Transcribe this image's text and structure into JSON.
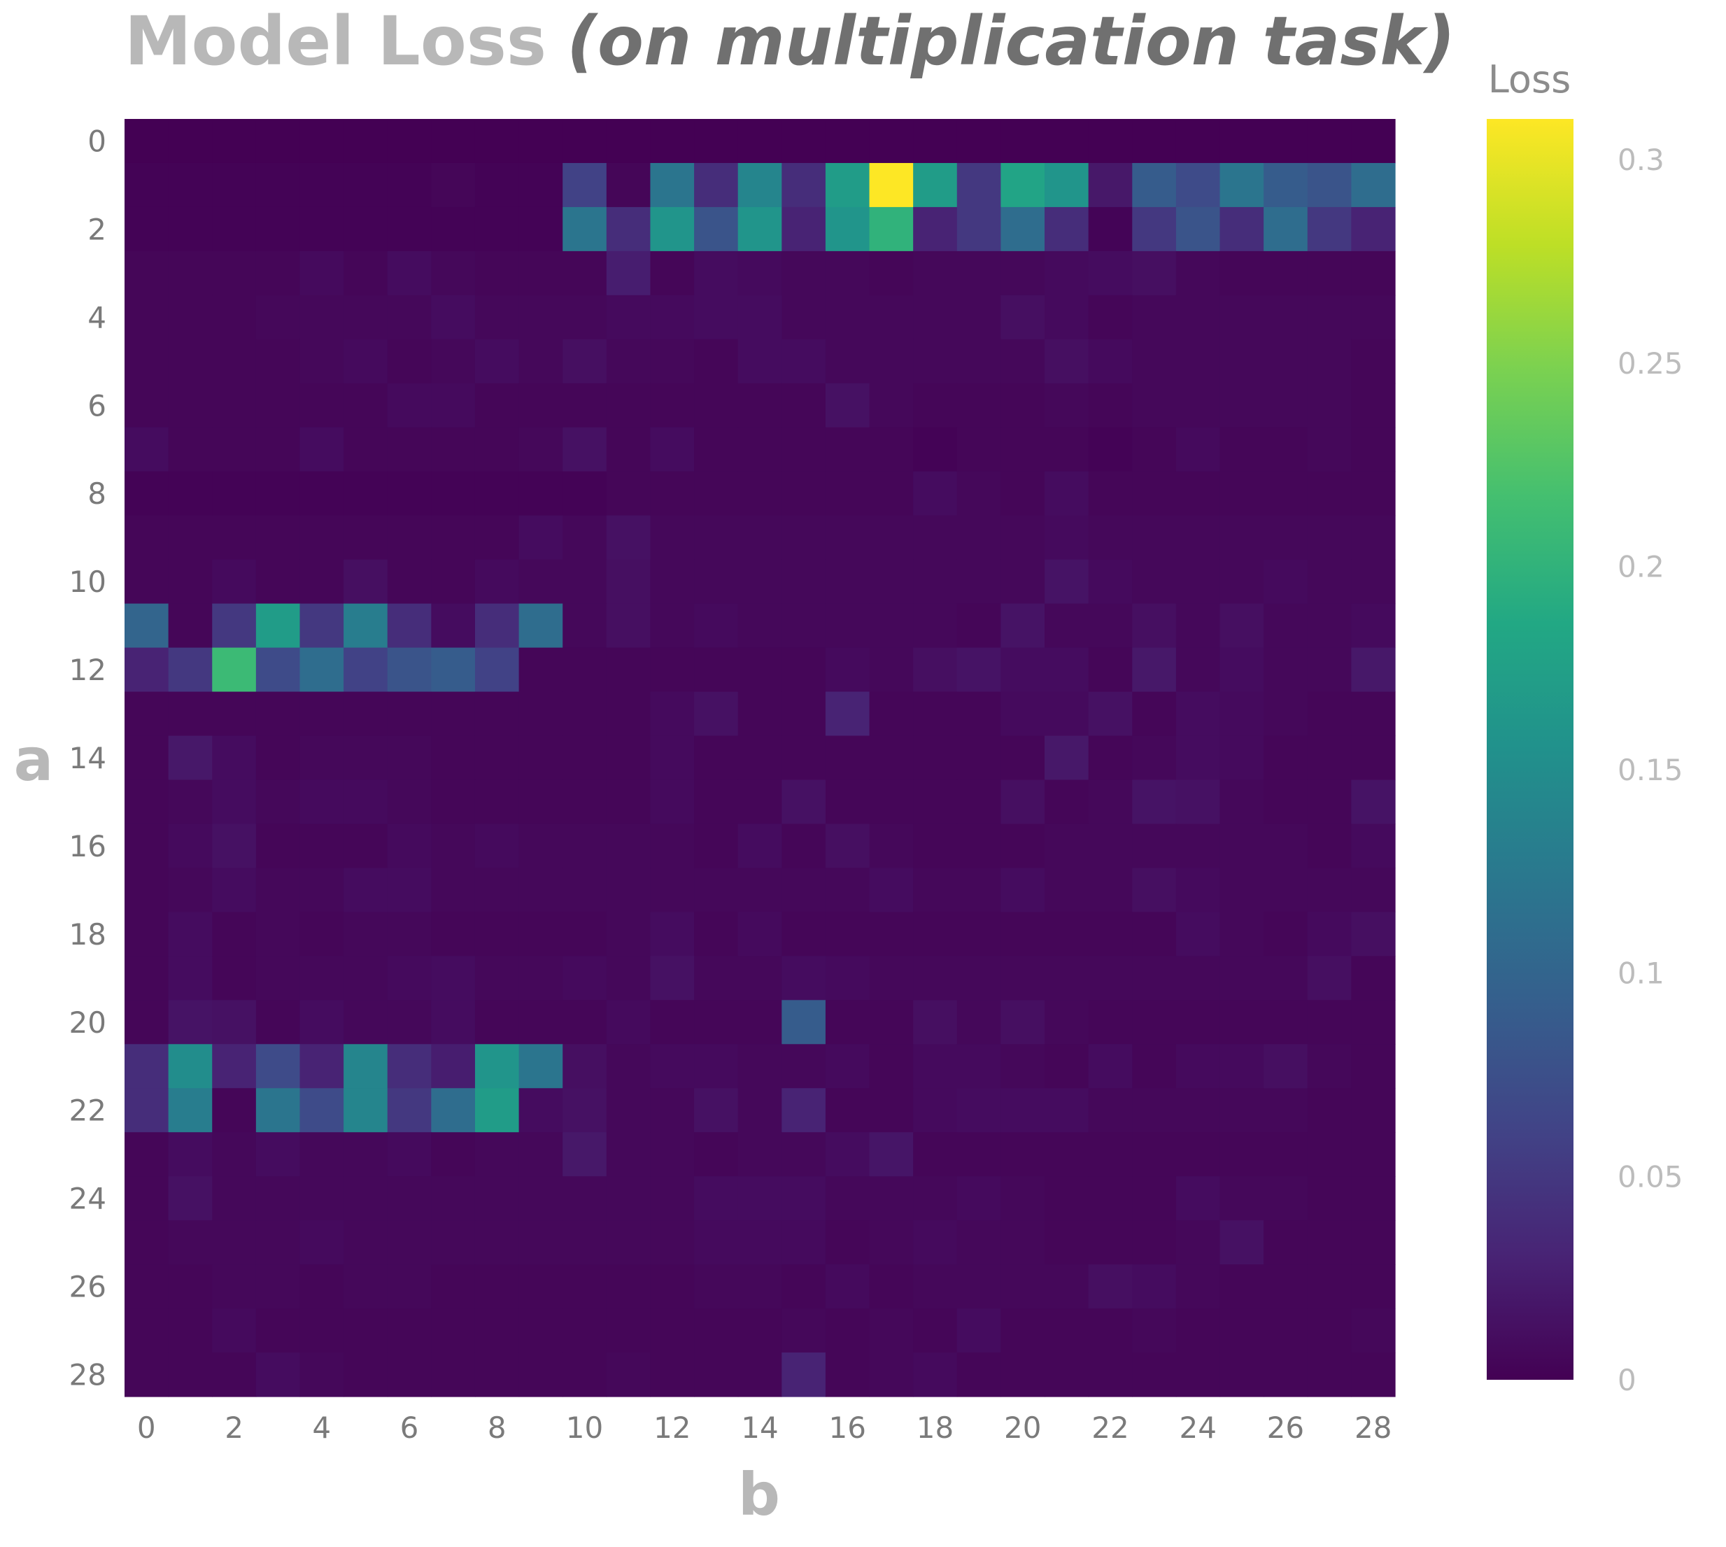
{
  "chart_data": {
    "type": "heatmap",
    "title": "Model Loss",
    "subtitle": "(on multiplication task)",
    "xlabel": "b",
    "ylabel": "a",
    "colorbar_title": "Loss",
    "colorscale": "viridis",
    "zlim": [
      0,
      0.31
    ],
    "colorbar_ticks": [
      "0",
      "0.05",
      "0.1",
      "0.15",
      "0.2",
      "0.25",
      "0.3"
    ],
    "colorbar_tick_values": [
      0,
      0.05,
      0.1,
      0.15,
      0.2,
      0.25,
      0.3
    ],
    "x_tick_labels": [
      "0",
      "2",
      "4",
      "6",
      "8",
      "10",
      "12",
      "14",
      "16",
      "18",
      "20",
      "22",
      "24",
      "26",
      "28"
    ],
    "y_tick_labels": [
      "0",
      "2",
      "4",
      "6",
      "8",
      "10",
      "12",
      "14",
      "16",
      "18",
      "20",
      "22",
      "24",
      "26",
      "28"
    ],
    "x": [
      0,
      1,
      2,
      3,
      4,
      5,
      6,
      7,
      8,
      9,
      10,
      11,
      12,
      13,
      14,
      15,
      16,
      17,
      18,
      19,
      20,
      21,
      22,
      23,
      24,
      25,
      26,
      27,
      28
    ],
    "y": [
      0,
      1,
      2,
      3,
      4,
      5,
      6,
      7,
      8,
      9,
      10,
      11,
      12,
      13,
      14,
      15,
      16,
      17,
      18,
      19,
      20,
      21,
      22,
      23,
      24,
      25,
      26,
      27,
      28
    ],
    "z": [
      [
        0,
        0,
        0,
        0,
        0,
        0,
        0,
        0,
        0,
        0,
        0,
        0,
        0,
        0,
        0,
        0,
        0,
        0,
        0,
        0,
        0,
        0,
        0,
        0,
        0,
        0,
        0,
        0,
        0
      ],
      [
        0.002,
        0.002,
        0.002,
        0.002,
        0.002,
        0.002,
        0.002,
        0.004,
        0.002,
        0.002,
        0.06,
        0.004,
        0.12,
        0.04,
        0.14,
        0.04,
        0.17,
        0.31,
        0.17,
        0.05,
        0.18,
        0.16,
        0.02,
        0.09,
        0.07,
        0.12,
        0.09,
        0.08,
        0.11
      ],
      [
        0.002,
        0.002,
        0.002,
        0.002,
        0.002,
        0.002,
        0.002,
        0.002,
        0.002,
        0.002,
        0.12,
        0.04,
        0.16,
        0.08,
        0.16,
        0.03,
        0.16,
        0.2,
        0.03,
        0.05,
        0.11,
        0.04,
        0.003,
        0.05,
        0.08,
        0.04,
        0.11,
        0.05,
        0.03
      ],
      [
        0.004,
        0.004,
        0.004,
        0.004,
        0.008,
        0.004,
        0.01,
        0.006,
        0.004,
        0.004,
        0.004,
        0.025,
        0.004,
        0.01,
        0.008,
        0.006,
        0.006,
        0.004,
        0.006,
        0.006,
        0.006,
        0.008,
        0.01,
        0.012,
        0.006,
        0.004,
        0.004,
        0.004,
        0.004
      ],
      [
        0.004,
        0.004,
        0.004,
        0.006,
        0.006,
        0.006,
        0.006,
        0.01,
        0.006,
        0.006,
        0.006,
        0.008,
        0.008,
        0.01,
        0.01,
        0.006,
        0.006,
        0.006,
        0.006,
        0.006,
        0.012,
        0.008,
        0.004,
        0.006,
        0.006,
        0.006,
        0.006,
        0.006,
        0.006
      ],
      [
        0.004,
        0.004,
        0.004,
        0.004,
        0.006,
        0.008,
        0.004,
        0.006,
        0.01,
        0.006,
        0.012,
        0.006,
        0.006,
        0.004,
        0.01,
        0.01,
        0.006,
        0.006,
        0.006,
        0.006,
        0.006,
        0.012,
        0.008,
        0.006,
        0.006,
        0.006,
        0.006,
        0.006,
        0.004
      ],
      [
        0.004,
        0.004,
        0.004,
        0.004,
        0.004,
        0.004,
        0.008,
        0.008,
        0.004,
        0.004,
        0.004,
        0.004,
        0.004,
        0.004,
        0.004,
        0.004,
        0.014,
        0.006,
        0.004,
        0.004,
        0.004,
        0.006,
        0.004,
        0.006,
        0.006,
        0.006,
        0.006,
        0.006,
        0.004
      ],
      [
        0.01,
        0.004,
        0.004,
        0.004,
        0.01,
        0.004,
        0.004,
        0.004,
        0.004,
        0.006,
        0.014,
        0.004,
        0.01,
        0.004,
        0.004,
        0.004,
        0.004,
        0.004,
        0.002,
        0.004,
        0.004,
        0.004,
        0.002,
        0.004,
        0.008,
        0.004,
        0.004,
        0.006,
        0.004
      ],
      [
        0.002,
        0.002,
        0.002,
        0.002,
        0.002,
        0.002,
        0.002,
        0.002,
        0.002,
        0.002,
        0.002,
        0.004,
        0.004,
        0.004,
        0.004,
        0.004,
        0.004,
        0.004,
        0.01,
        0.006,
        0.004,
        0.01,
        0.004,
        0.004,
        0.004,
        0.004,
        0.004,
        0.004,
        0.004
      ],
      [
        0.004,
        0.004,
        0.004,
        0.004,
        0.004,
        0.004,
        0.004,
        0.004,
        0.004,
        0.01,
        0.006,
        0.014,
        0.006,
        0.006,
        0.006,
        0.006,
        0.006,
        0.006,
        0.006,
        0.006,
        0.006,
        0.008,
        0.006,
        0.006,
        0.006,
        0.006,
        0.006,
        0.006,
        0.006
      ],
      [
        0.004,
        0.004,
        0.008,
        0.004,
        0.004,
        0.012,
        0.004,
        0.004,
        0.008,
        0.006,
        0.006,
        0.012,
        0.006,
        0.006,
        0.006,
        0.006,
        0.006,
        0.006,
        0.006,
        0.006,
        0.006,
        0.016,
        0.008,
        0.006,
        0.006,
        0.006,
        0.008,
        0.006,
        0.006
      ],
      [
        0.1,
        0.004,
        0.05,
        0.17,
        0.05,
        0.13,
        0.04,
        0.01,
        0.04,
        0.11,
        0.006,
        0.012,
        0.006,
        0.008,
        0.006,
        0.006,
        0.006,
        0.006,
        0.006,
        0.004,
        0.016,
        0.006,
        0.006,
        0.012,
        0.006,
        0.012,
        0.006,
        0.006,
        0.008
      ],
      [
        0.03,
        0.05,
        0.21,
        0.07,
        0.11,
        0.06,
        0.08,
        0.09,
        0.06,
        0.004,
        0.004,
        0.004,
        0.004,
        0.004,
        0.004,
        0.004,
        0.008,
        0.006,
        0.012,
        0.016,
        0.01,
        0.01,
        0.004,
        0.02,
        0.006,
        0.01,
        0.006,
        0.006,
        0.02
      ],
      [
        0.004,
        0.004,
        0.004,
        0.004,
        0.004,
        0.004,
        0.004,
        0.004,
        0.004,
        0.004,
        0.004,
        0.004,
        0.008,
        0.014,
        0.004,
        0.004,
        0.03,
        0.004,
        0.004,
        0.004,
        0.008,
        0.008,
        0.014,
        0.004,
        0.01,
        0.008,
        0.006,
        0.004,
        0.004
      ],
      [
        0.004,
        0.02,
        0.01,
        0.004,
        0.006,
        0.006,
        0.006,
        0.004,
        0.004,
        0.004,
        0.004,
        0.004,
        0.008,
        0.004,
        0.004,
        0.004,
        0.004,
        0.004,
        0.004,
        0.004,
        0.004,
        0.02,
        0.004,
        0.006,
        0.01,
        0.008,
        0.004,
        0.004,
        0.004
      ],
      [
        0.004,
        0.006,
        0.01,
        0.006,
        0.008,
        0.008,
        0.006,
        0.004,
        0.004,
        0.004,
        0.004,
        0.004,
        0.008,
        0.004,
        0.004,
        0.014,
        0.004,
        0.004,
        0.004,
        0.004,
        0.012,
        0.004,
        0.006,
        0.016,
        0.014,
        0.006,
        0.004,
        0.004,
        0.016
      ],
      [
        0.004,
        0.008,
        0.014,
        0.004,
        0.004,
        0.004,
        0.008,
        0.006,
        0.008,
        0.006,
        0.006,
        0.006,
        0.006,
        0.004,
        0.01,
        0.004,
        0.012,
        0.006,
        0.004,
        0.004,
        0.004,
        0.006,
        0.006,
        0.006,
        0.006,
        0.006,
        0.006,
        0.004,
        0.008
      ],
      [
        0.004,
        0.006,
        0.01,
        0.006,
        0.006,
        0.01,
        0.01,
        0.006,
        0.006,
        0.006,
        0.006,
        0.006,
        0.006,
        0.006,
        0.006,
        0.006,
        0.006,
        0.01,
        0.006,
        0.006,
        0.01,
        0.006,
        0.006,
        0.012,
        0.008,
        0.006,
        0.006,
        0.006,
        0.006
      ],
      [
        0.004,
        0.01,
        0.004,
        0.006,
        0.004,
        0.006,
        0.006,
        0.004,
        0.004,
        0.004,
        0.004,
        0.006,
        0.01,
        0.004,
        0.008,
        0.004,
        0.004,
        0.004,
        0.004,
        0.004,
        0.004,
        0.004,
        0.004,
        0.004,
        0.01,
        0.006,
        0.004,
        0.008,
        0.012
      ],
      [
        0.004,
        0.01,
        0.004,
        0.006,
        0.006,
        0.006,
        0.008,
        0.01,
        0.006,
        0.006,
        0.008,
        0.006,
        0.014,
        0.006,
        0.006,
        0.01,
        0.008,
        0.006,
        0.006,
        0.006,
        0.006,
        0.006,
        0.006,
        0.006,
        0.006,
        0.006,
        0.006,
        0.012,
        0.004
      ],
      [
        0.004,
        0.016,
        0.014,
        0.004,
        0.01,
        0.006,
        0.006,
        0.01,
        0.004,
        0.004,
        0.004,
        0.008,
        0.004,
        0.004,
        0.004,
        0.09,
        0.004,
        0.004,
        0.012,
        0.006,
        0.012,
        0.006,
        0.004,
        0.004,
        0.004,
        0.004,
        0.004,
        0.004,
        0.004
      ],
      [
        0.04,
        0.15,
        0.03,
        0.07,
        0.03,
        0.14,
        0.04,
        0.025,
        0.16,
        0.12,
        0.012,
        0.006,
        0.008,
        0.008,
        0.006,
        0.006,
        0.008,
        0.004,
        0.008,
        0.008,
        0.006,
        0.004,
        0.01,
        0.004,
        0.008,
        0.008,
        0.012,
        0.006,
        0.004
      ],
      [
        0.04,
        0.13,
        0.004,
        0.12,
        0.07,
        0.14,
        0.05,
        0.11,
        0.17,
        0.01,
        0.014,
        0.006,
        0.006,
        0.014,
        0.006,
        0.03,
        0.004,
        0.004,
        0.008,
        0.01,
        0.01,
        0.01,
        0.006,
        0.006,
        0.006,
        0.006,
        0.006,
        0.004,
        0.004
      ],
      [
        0.004,
        0.01,
        0.006,
        0.01,
        0.006,
        0.006,
        0.008,
        0.004,
        0.006,
        0.006,
        0.02,
        0.006,
        0.006,
        0.004,
        0.006,
        0.006,
        0.01,
        0.018,
        0.004,
        0.004,
        0.004,
        0.004,
        0.004,
        0.004,
        0.004,
        0.004,
        0.004,
        0.004,
        0.004
      ],
      [
        0.004,
        0.014,
        0.006,
        0.006,
        0.006,
        0.006,
        0.006,
        0.006,
        0.006,
        0.006,
        0.006,
        0.006,
        0.006,
        0.01,
        0.01,
        0.01,
        0.006,
        0.006,
        0.006,
        0.008,
        0.006,
        0.004,
        0.004,
        0.004,
        0.01,
        0.006,
        0.006,
        0.004,
        0.004
      ],
      [
        0.004,
        0.006,
        0.006,
        0.006,
        0.008,
        0.006,
        0.006,
        0.006,
        0.006,
        0.006,
        0.006,
        0.006,
        0.006,
        0.008,
        0.008,
        0.008,
        0.004,
        0.006,
        0.008,
        0.006,
        0.006,
        0.004,
        0.004,
        0.004,
        0.006,
        0.014,
        0.004,
        0.004,
        0.004
      ],
      [
        0.004,
        0.004,
        0.006,
        0.006,
        0.004,
        0.006,
        0.006,
        0.004,
        0.004,
        0.004,
        0.004,
        0.004,
        0.004,
        0.006,
        0.006,
        0.004,
        0.008,
        0.004,
        0.006,
        0.006,
        0.006,
        0.006,
        0.012,
        0.01,
        0.006,
        0.004,
        0.004,
        0.004,
        0.004
      ],
      [
        0.004,
        0.004,
        0.008,
        0.004,
        0.004,
        0.004,
        0.004,
        0.004,
        0.004,
        0.004,
        0.004,
        0.004,
        0.004,
        0.004,
        0.004,
        0.006,
        0.004,
        0.006,
        0.004,
        0.01,
        0.004,
        0.004,
        0.004,
        0.006,
        0.004,
        0.004,
        0.004,
        0.004,
        0.006
      ],
      [
        0.004,
        0.004,
        0.004,
        0.01,
        0.006,
        0.004,
        0.004,
        0.004,
        0.004,
        0.004,
        0.004,
        0.006,
        0.004,
        0.004,
        0.004,
        0.03,
        0.004,
        0.006,
        0.008,
        0.004,
        0.004,
        0.004,
        0.004,
        0.004,
        0.004,
        0.004,
        0.004,
        0.004,
        0.004
      ]
    ]
  }
}
